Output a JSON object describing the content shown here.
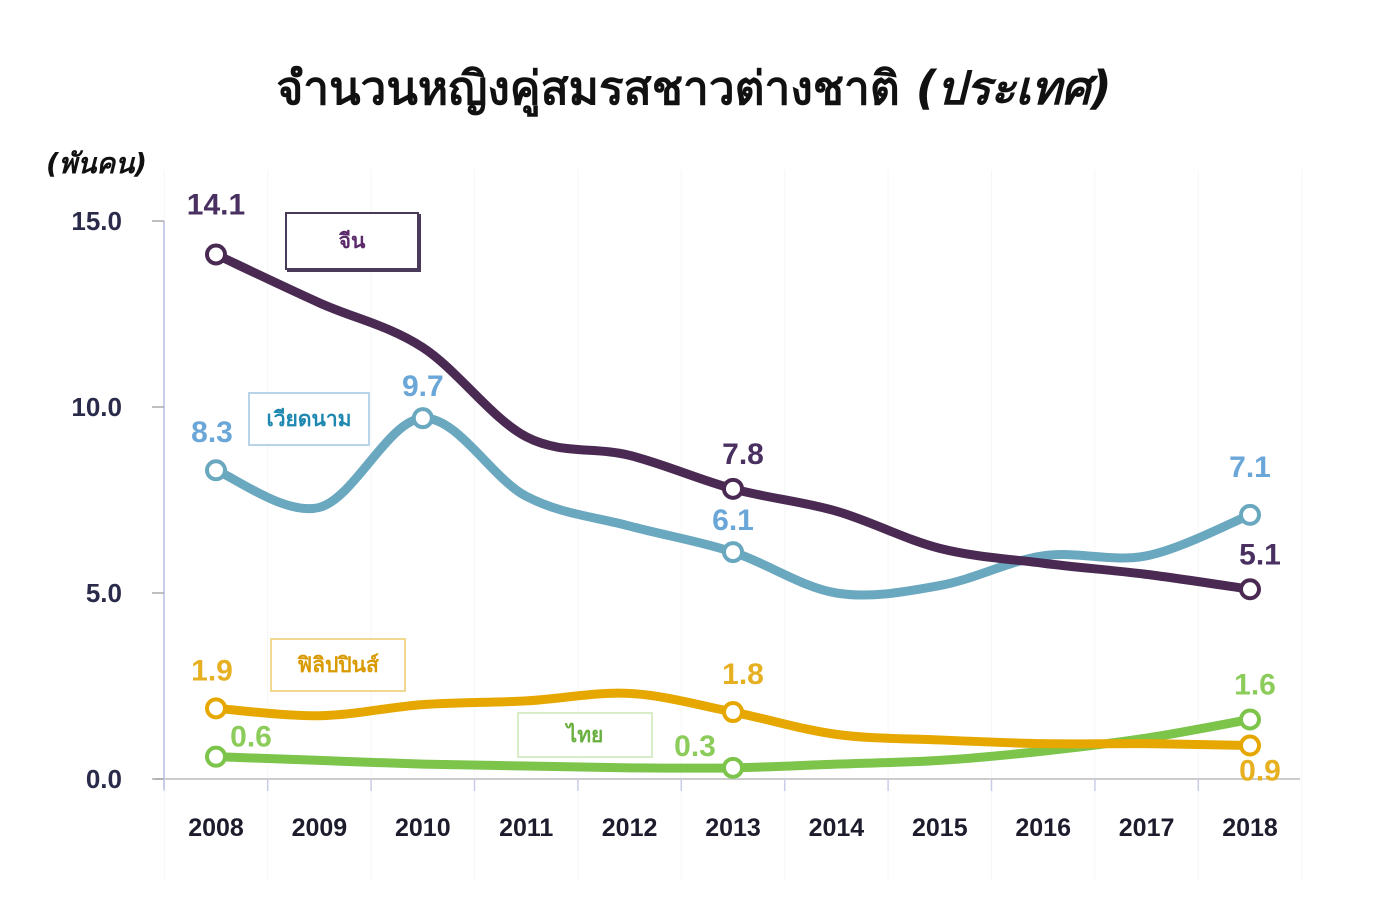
{
  "title": "จำนวนหญิงคู่สมรสชาวต่างชาติ",
  "title_suffix": "(ประเทศ)",
  "unit_label": "(พันคน)",
  "legend": [
    {
      "key": "china",
      "label": "จีน",
      "color": "#4a2a52",
      "text_color": "#5a2a6a"
    },
    {
      "key": "vietnam",
      "label": "เวียดนาม",
      "color": "#6aa8c0",
      "text_color": "#1f88b0"
    },
    {
      "key": "philippines",
      "label": "ฟิลิปปินส์",
      "color": "#e6a800",
      "text_color": "#d89a00"
    },
    {
      "key": "thai",
      "label": "ไทย",
      "color": "#7cc44a",
      "text_color": "#6ab040"
    }
  ],
  "chart_data": {
    "type": "line",
    "title": "จำนวนหญิงคู่สมรสชาวต่างชาติ (ประเทศ)",
    "xlabel": "",
    "ylabel": "(พันคน)",
    "ylim": [
      0,
      15
    ],
    "yticks": [
      "0.0",
      "5.0",
      "10.0",
      "15.0"
    ],
    "grid": false,
    "legend_position": "inline",
    "categories": [
      "2008",
      "2009",
      "2010",
      "2011",
      "2012",
      "2013",
      "2014",
      "2015",
      "2016",
      "2017",
      "2018"
    ],
    "series": [
      {
        "name": "จีน",
        "values": [
          14.1,
          12.8,
          11.6,
          9.2,
          8.7,
          7.8,
          7.2,
          6.2,
          5.8,
          5.5,
          5.1
        ],
        "labeled_points": {
          "2008": "14.1",
          "2013": "7.8",
          "2018": "5.1"
        }
      },
      {
        "name": "เวียดนาม",
        "values": [
          8.3,
          7.3,
          9.7,
          7.6,
          6.8,
          6.1,
          5.0,
          5.2,
          6.0,
          6.0,
          7.1
        ],
        "labeled_points": {
          "2008": "8.3",
          "2010": "9.7",
          "2013": "6.1",
          "2018": "7.1"
        }
      },
      {
        "name": "ฟิลิปปินส์",
        "values": [
          1.9,
          1.7,
          2.0,
          2.1,
          2.3,
          1.8,
          1.2,
          1.05,
          0.95,
          0.95,
          0.9
        ],
        "labeled_points": {
          "2008": "1.9",
          "2013": "1.8",
          "2018": "0.9"
        }
      },
      {
        "name": "ไทย",
        "values": [
          0.6,
          0.5,
          0.4,
          0.35,
          0.3,
          0.3,
          0.4,
          0.5,
          0.75,
          1.1,
          1.6
        ],
        "labeled_points": {
          "2008": "0.6",
          "2013": "0.3",
          "2018": "1.6"
        }
      }
    ]
  }
}
